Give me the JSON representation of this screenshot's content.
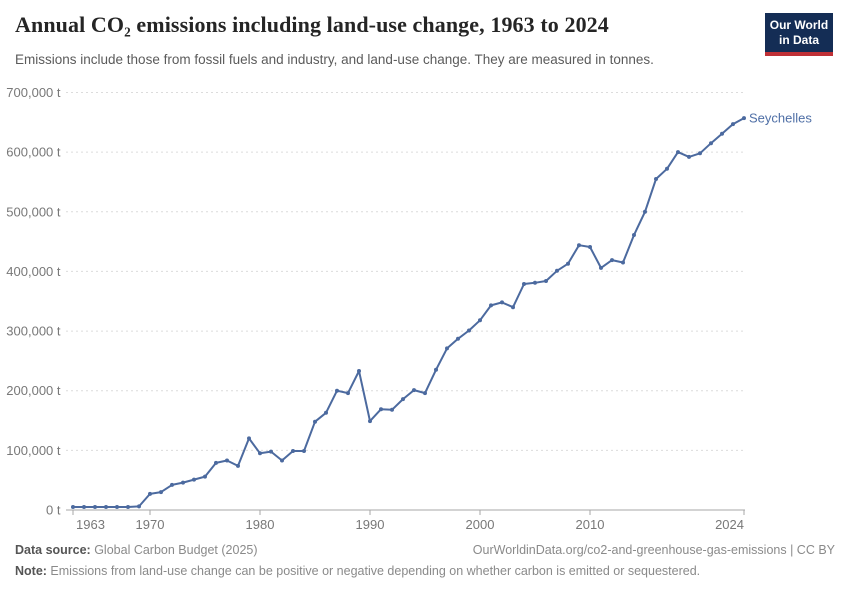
{
  "header": {
    "title": "Annual CO₂ emissions including land-use change, 1963 to 2024",
    "subtitle": "Emissions include those from fossil fuels and industry, and land-use change. They are measured in tonnes."
  },
  "logo": {
    "line1": "Our World",
    "line2": "in Data",
    "bg_color": "#142d55",
    "stripe_color": "#bf3036"
  },
  "chart_data": {
    "type": "line",
    "title": "Annual CO₂ emissions including land-use change, 1963 to 2024",
    "entity": "Seychelles",
    "unit": "t",
    "x": [
      1963,
      1964,
      1965,
      1966,
      1967,
      1968,
      1969,
      1970,
      1971,
      1972,
      1973,
      1974,
      1975,
      1976,
      1977,
      1978,
      1979,
      1980,
      1981,
      1982,
      1983,
      1984,
      1985,
      1986,
      1987,
      1988,
      1989,
      1990,
      1991,
      1992,
      1993,
      1994,
      1995,
      1996,
      1997,
      1998,
      1999,
      2000,
      2001,
      2002,
      2003,
      2004,
      2005,
      2006,
      2007,
      2008,
      2009,
      2010,
      2011,
      2012,
      2013,
      2014,
      2015,
      2016,
      2017,
      2018,
      2019,
      2020,
      2021,
      2022,
      2023,
      2024
    ],
    "values": [
      5000,
      5000,
      5000,
      5000,
      5000,
      5000,
      6000,
      27000,
      30000,
      42000,
      46000,
      51000,
      56000,
      79000,
      83000,
      74000,
      120000,
      95000,
      98000,
      83000,
      99000,
      99000,
      148000,
      163000,
      200000,
      196000,
      233000,
      149000,
      169000,
      168000,
      186000,
      201000,
      196000,
      235000,
      271000,
      287000,
      301000,
      318000,
      343000,
      348000,
      340000,
      379000,
      381000,
      384000,
      401000,
      413000,
      444000,
      441000,
      406000,
      419000,
      415000,
      461000,
      500000,
      555000,
      572000,
      600000,
      592000,
      598000,
      615000,
      631000,
      647000,
      657000
    ],
    "xlim": [
      1963,
      2024
    ],
    "ylim": [
      0,
      700000
    ],
    "yticks": [
      0,
      100000,
      200000,
      300000,
      400000,
      500000,
      600000,
      700000
    ],
    "ytick_suffix": " t",
    "xticks": [
      1963,
      1970,
      1980,
      1990,
      2000,
      2010,
      2024
    ],
    "grid": "horizontal-dashed",
    "legend_position": "end-of-line-label",
    "line_color": "#4c6a9f",
    "marker": "circle",
    "label_color": "#4f6fa6"
  },
  "footer": {
    "source_label": "Data source:",
    "source_value": " Global Carbon Budget (2025)",
    "link": "OurWorldinData.org/co2-and-greenhouse-gas-emissions | CC BY",
    "note_label": "Note:",
    "note_text": " Emissions from land-use change can be positive or negative depending on whether carbon is emitted or sequestered."
  }
}
